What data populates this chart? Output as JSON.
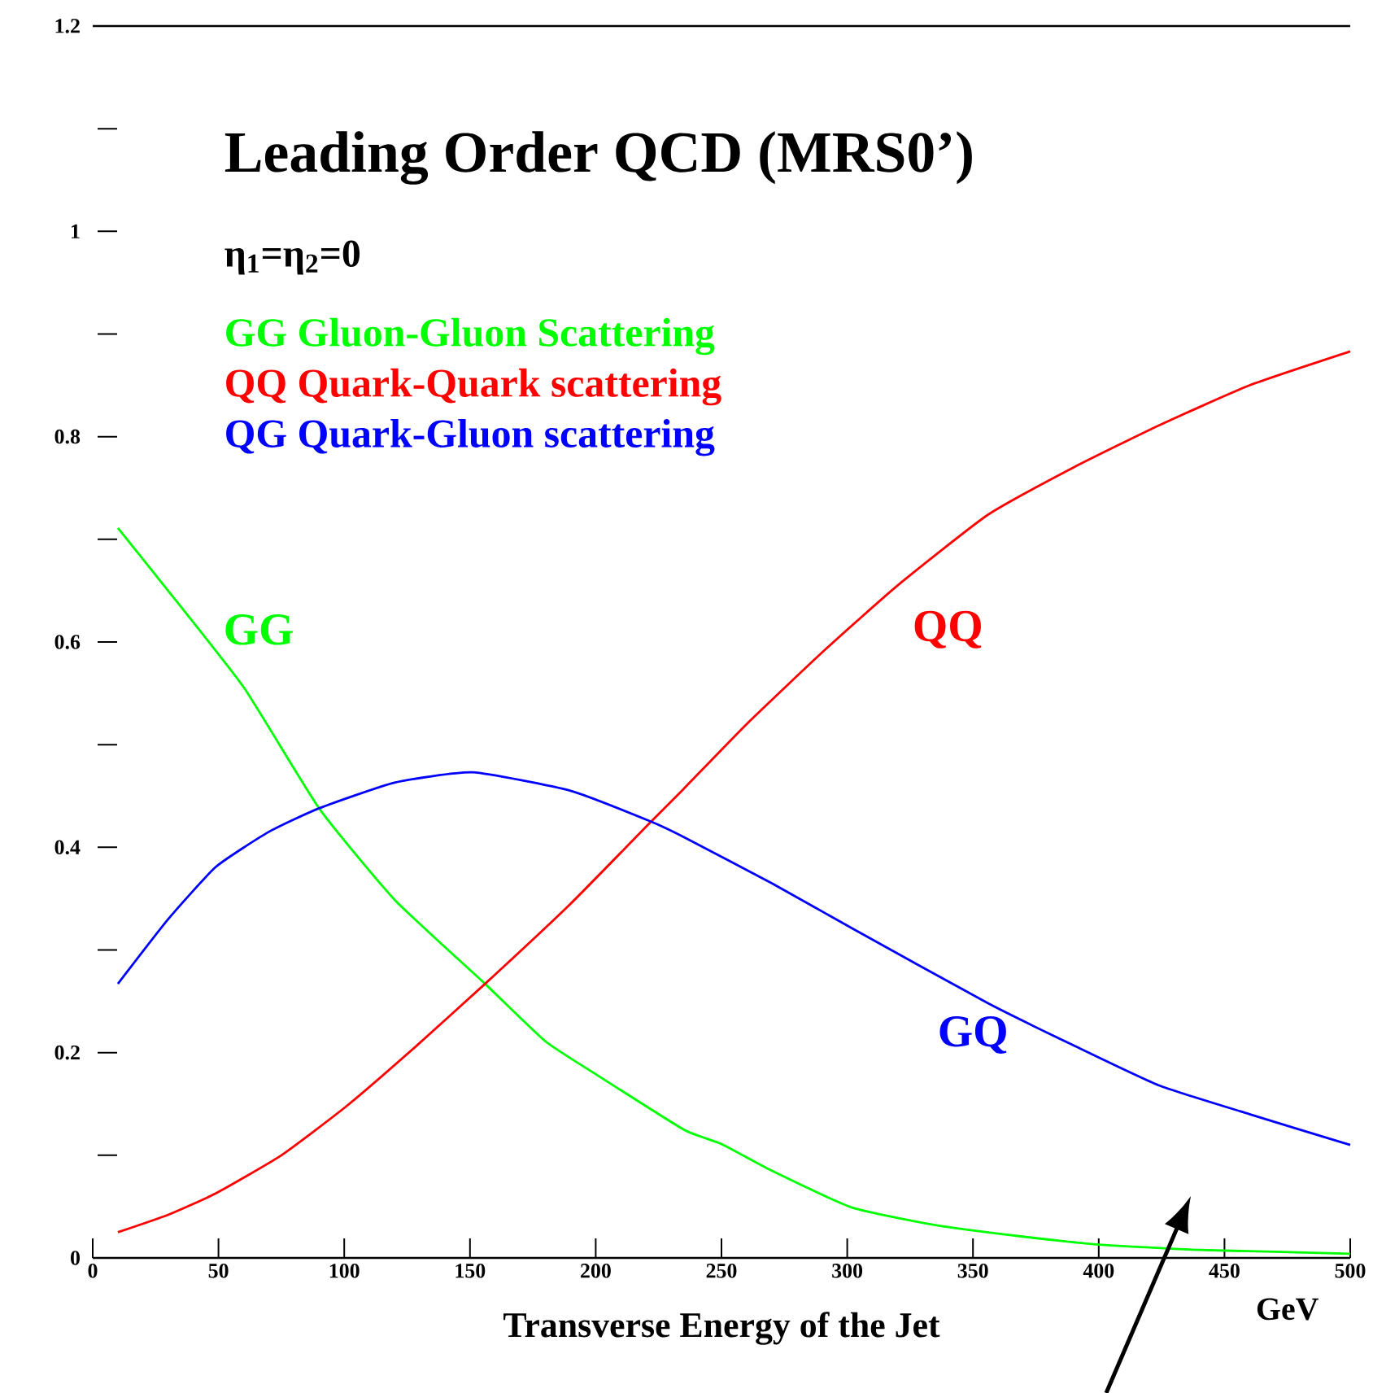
{
  "chart_data": {
    "type": "line",
    "title": "Leading Order QCD (MRS0’)",
    "subtitle": "η$_{1}$=η$_{2}$=0",
    "xlabel": "Transverse Energy of the Jet",
    "series": [
      {
        "name": "GG  Gluon-Gluon Scattering",
        "color": "#00ff00",
        "x": [
          10,
          28,
          60,
          90,
          120,
          156,
          180,
          200,
          235,
          250,
          270,
          302,
          335,
          369,
          400,
          437,
          470,
          500
        ],
        "values": [
          0.711,
          0.656,
          0.556,
          0.438,
          0.349,
          0.267,
          0.211,
          0.179,
          0.125,
          0.111,
          0.085,
          0.049,
          0.032,
          0.021,
          0.013,
          0.008,
          0.006,
          0.004
        ]
      },
      {
        "name": "QQ  Quark-Quark scattering",
        "color": "#ff0000",
        "x": [
          10,
          30,
          49,
          75,
          101,
          128,
          156,
          190,
          222,
          235,
          260,
          291,
          320,
          356,
          390,
          424,
          460,
          500
        ],
        "values": [
          0.025,
          0.042,
          0.063,
          0.1,
          0.148,
          0.205,
          0.267,
          0.345,
          0.425,
          0.457,
          0.52,
          0.592,
          0.655,
          0.724,
          0.77,
          0.811,
          0.85,
          0.883
        ]
      },
      {
        "name": "QG  Quark-Gluon scattering",
        "color": "#0000ff",
        "x": [
          10,
          30,
          49,
          70,
          90,
          120,
          151,
          190,
          222,
          235,
          270,
          302,
          356,
          390,
          424,
          460,
          500
        ],
        "values": [
          0.267,
          0.33,
          0.381,
          0.415,
          0.438,
          0.463,
          0.473,
          0.455,
          0.425,
          0.41,
          0.365,
          0.321,
          0.248,
          0.207,
          0.168,
          0.14,
          0.11
        ]
      }
    ],
    "annotations": [
      "GG",
      "QQ",
      "GQ",
      "GeV"
    ],
    "xlim": [
      0,
      500
    ],
    "ylim": [
      0,
      1.2
    ],
    "xticks": [
      0,
      50,
      100,
      150,
      200,
      250,
      300,
      350,
      400,
      450,
      500
    ],
    "yticks": [
      0,
      {
        "value": 0.1,
        "label": null
      },
      0.2,
      {
        "value": 0.3,
        "label": null
      },
      0.4,
      {
        "value": 0.5,
        "label": null
      },
      0.6,
      {
        "value": 0.7,
        "label": null
      },
      0.8,
      {
        "value": 0.9,
        "label": null
      },
      1,
      {
        "value": 1.1,
        "label": null
      },
      1.2
    ],
    "grid": false,
    "legend": "top left",
    "marker": "none",
    "line_style": "solid"
  }
}
